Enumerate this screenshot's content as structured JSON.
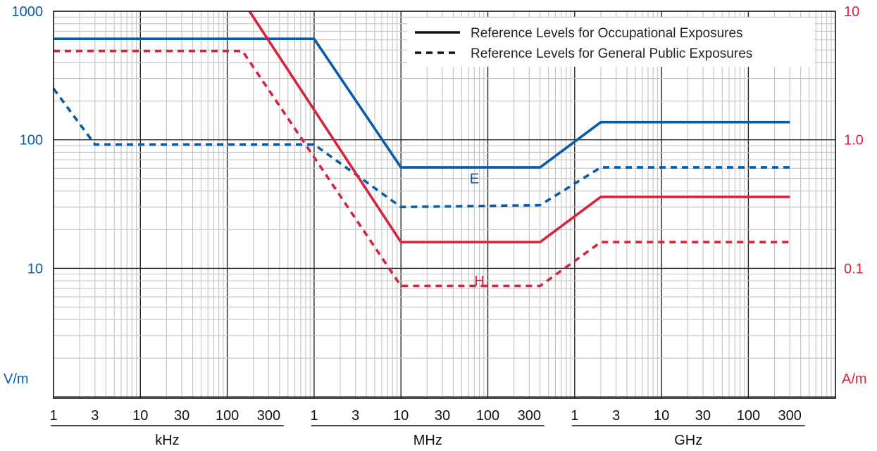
{
  "chart_data": {
    "type": "line",
    "x_scale": "log",
    "x_unit": "Hz",
    "x_range": [
      1000,
      300000000000
    ],
    "y_left": {
      "unit_label": "V/m",
      "scale": "log",
      "range": [
        1,
        1000
      ],
      "ticks": [
        "1000",
        "100",
        "10"
      ],
      "color": "#0a5ca8"
    },
    "y_right": {
      "unit_label": "A/m",
      "scale": "log",
      "range": [
        0.01,
        10
      ],
      "ticks": [
        "10",
        "1.0",
        "0.1"
      ],
      "color": "#d6243e"
    },
    "x_tick_labels": [
      {
        "x": 1000,
        "label": "1"
      },
      {
        "x": 3000,
        "label": "3"
      },
      {
        "x": 10000,
        "label": "10"
      },
      {
        "x": 30000,
        "label": "30"
      },
      {
        "x": 100000,
        "label": "100"
      },
      {
        "x": 300000,
        "label": "300"
      },
      {
        "x": 1000000,
        "label": "1"
      },
      {
        "x": 3000000,
        "label": "3"
      },
      {
        "x": 10000000,
        "label": "10"
      },
      {
        "x": 30000000,
        "label": "30"
      },
      {
        "x": 100000000,
        "label": "100"
      },
      {
        "x": 300000000,
        "label": "300"
      },
      {
        "x": 1000000000,
        "label": "1"
      },
      {
        "x": 3000000000,
        "label": "3"
      },
      {
        "x": 10000000000,
        "label": "10"
      },
      {
        "x": 30000000000,
        "label": "30"
      },
      {
        "x": 100000000000,
        "label": "100"
      },
      {
        "x": 300000000000,
        "label": "300"
      }
    ],
    "x_groups": [
      {
        "label": "kHz",
        "from": 1000,
        "to": 400000
      },
      {
        "label": "MHz",
        "from": 1000000,
        "to": 400000000
      },
      {
        "label": "GHz",
        "from": 1000000000,
        "to": 400000000000
      }
    ],
    "legend": {
      "placement": "top-right",
      "items": [
        {
          "style": "solid",
          "label": "Reference Levels for Occupational Exposures"
        },
        {
          "style": "dashed",
          "label": "Reference Levels for General Public Exposures"
        }
      ]
    },
    "annotations": [
      {
        "text": "E",
        "x": 70000000,
        "y": 50,
        "axis": "left",
        "color": "#0a5ca8"
      },
      {
        "text": "H",
        "x": 80000000,
        "y": 0.08,
        "axis": "right",
        "color": "#d6243e"
      }
    ],
    "series": [
      {
        "field": "E",
        "exposure": "occupational",
        "style": "solid",
        "color": "#0a5ca8",
        "axis": "left",
        "x": [
          1000,
          1000000,
          10000000,
          400000000,
          2000000000,
          300000000000
        ],
        "y": [
          610,
          610,
          61,
          61,
          137,
          137
        ]
      },
      {
        "field": "E",
        "exposure": "general public",
        "style": "dashed",
        "color": "#0a5ca8",
        "axis": "left",
        "x": [
          1000,
          3000,
          1000000,
          10000000,
          400000000,
          2000000000,
          300000000000
        ],
        "y": [
          250,
          92,
          92,
          30,
          31,
          61,
          61
        ]
      },
      {
        "field": "H",
        "exposure": "occupational",
        "style": "solid",
        "color": "#d6243e",
        "axis": "right",
        "x": [
          180000,
          10000000,
          400000000,
          2000000000,
          300000000000
        ],
        "y": [
          10,
          0.16,
          0.16,
          0.36,
          0.36
        ]
      },
      {
        "field": "H",
        "exposure": "general public",
        "style": "dashed",
        "color": "#d6243e",
        "axis": "right",
        "x": [
          1000,
          150000,
          10000000,
          400000000,
          2000000000,
          300000000000
        ],
        "y": [
          4.9,
          4.9,
          0.073,
          0.073,
          0.16,
          0.16
        ]
      }
    ]
  }
}
